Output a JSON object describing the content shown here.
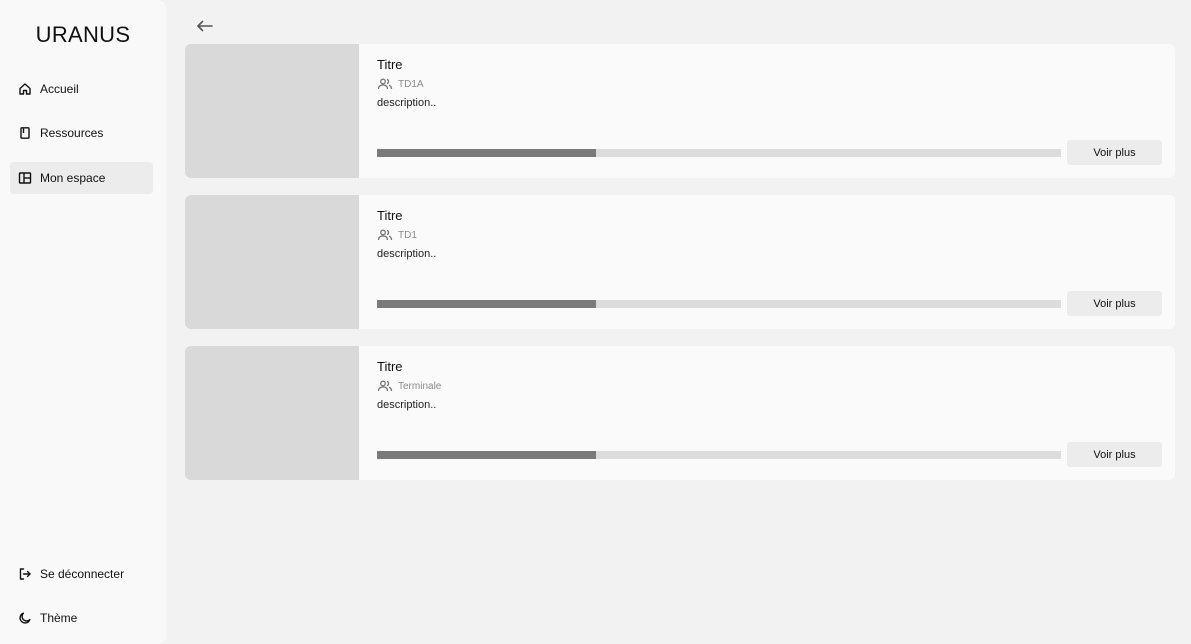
{
  "app": {
    "name": "URANUS"
  },
  "sidebar": {
    "items": [
      {
        "label": "Accueil",
        "icon": "home-icon"
      },
      {
        "label": "Ressources",
        "icon": "book-icon"
      },
      {
        "label": "Mon espace",
        "icon": "layout-icon",
        "active": true
      }
    ],
    "bottom": [
      {
        "label": "Se déconnecter",
        "icon": "logout-icon"
      },
      {
        "label": "Thème",
        "icon": "moon-icon"
      }
    ]
  },
  "header": {
    "back_icon": "arrow-left-icon"
  },
  "cards": [
    {
      "title": "Titre",
      "group": "TD1A",
      "description": "description..",
      "progress": 0.32,
      "button": "Voir plus"
    },
    {
      "title": "Titre",
      "group": "TD1",
      "description": "description..",
      "progress": 0.32,
      "button": "Voir plus"
    },
    {
      "title": "Titre",
      "group": "Terminale",
      "description": "description..",
      "progress": 0.32,
      "button": "Voir plus"
    }
  ],
  "colors": {
    "background": "#f2f2f2",
    "card": "#fafafa",
    "thumbnail": "#d9d9d9",
    "progress_fill": "#7a7a7a",
    "progress_track": "#dcdcdc",
    "active_nav": "#ececec"
  }
}
